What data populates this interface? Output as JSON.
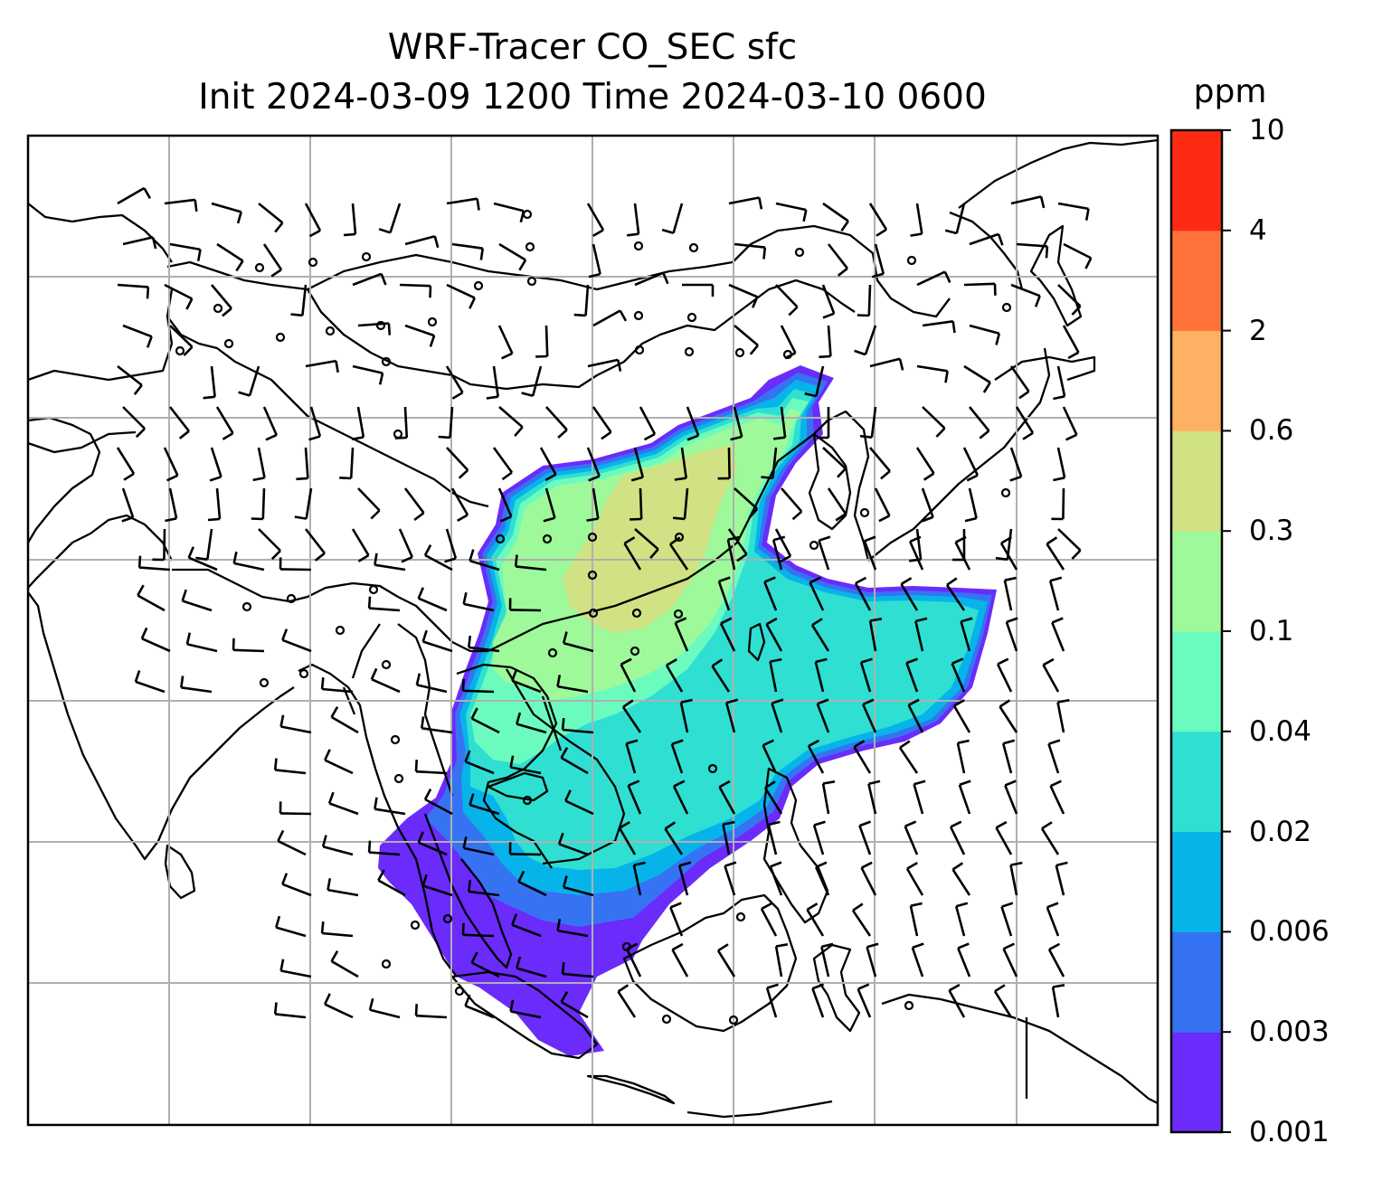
{
  "title": {
    "line1": "WRF-Tracer CO_SEC sfc",
    "line2": "Init 2024-03-09 1200 Time 2024-03-10 0600"
  },
  "colorbar": {
    "unit": "ppm",
    "ticks": [
      "0.001",
      "0.003",
      "0.006",
      "0.02",
      "0.04",
      "0.1",
      "0.3",
      "0.6",
      "2",
      "4",
      "10"
    ],
    "colors": [
      "#6a2bfb",
      "#3673f3",
      "#06b4ea",
      "#2fdfd2",
      "#6cfbbf",
      "#9ef99a",
      "#d0e284",
      "#feb162",
      "#ff733b",
      "#ff2a14"
    ]
  },
  "map": {
    "region": "South and East Asia",
    "field": "CO_SEC surface tracer concentration",
    "overlay": "wind barbs",
    "gridlines": true
  },
  "chart_data": {
    "type": "heatmap",
    "title": "WRF-Tracer CO_SEC sfc",
    "subtitle": "Init 2024-03-09 1200 Time 2024-03-10 0600",
    "colorbar_label": "ppm",
    "levels": [
      0.001,
      0.003,
      0.006,
      0.02,
      0.04,
      0.1,
      0.3,
      0.6,
      2,
      4,
      10
    ],
    "grid": true
  }
}
